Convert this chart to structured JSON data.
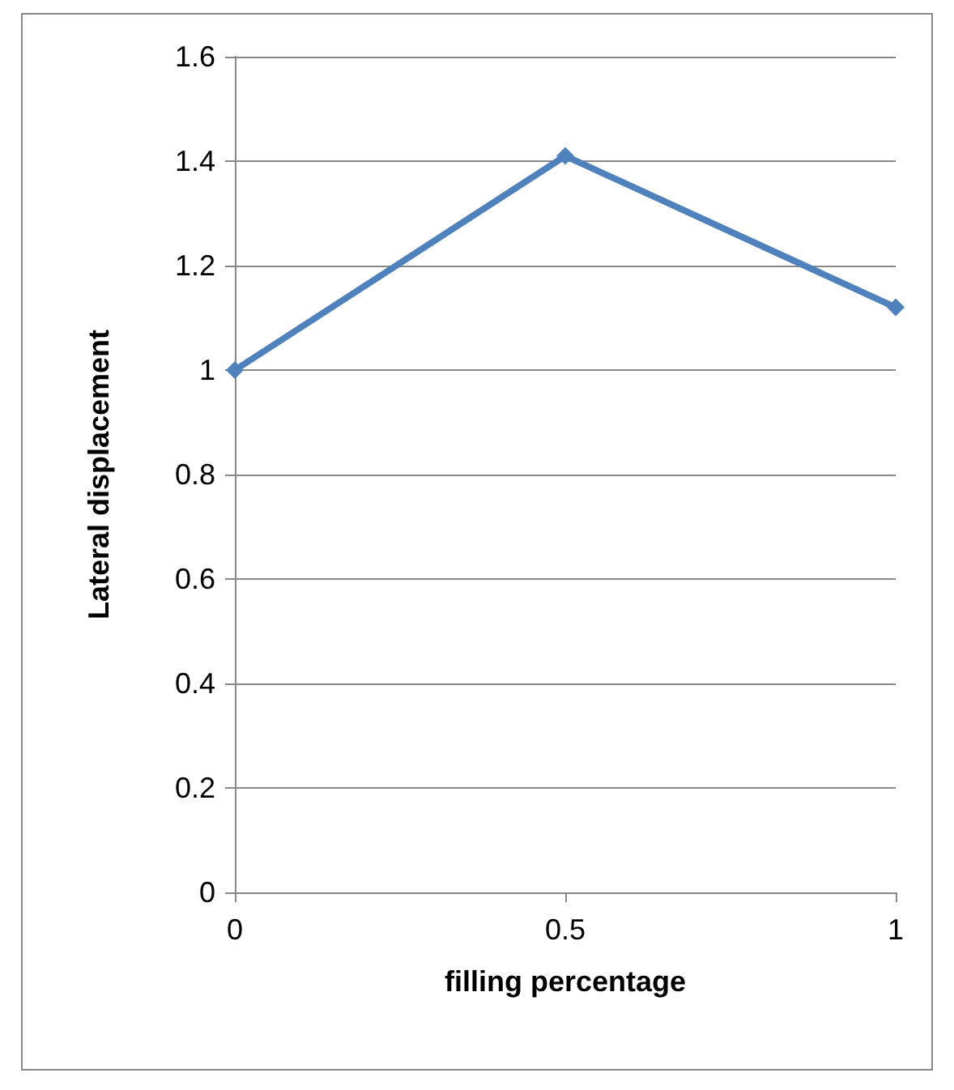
{
  "chart_data": {
    "type": "line",
    "xlabel": "filling percentage",
    "ylabel": "Lateral displacement",
    "categories": [
      "0",
      "0.5",
      "1"
    ],
    "series": [
      {
        "color": "#4f81bd",
        "values": [
          1.0,
          1.41,
          1.12
        ]
      }
    ],
    "ylim": [
      0,
      1.6
    ],
    "yticks": [
      0,
      0.2,
      0.4,
      0.6,
      0.8,
      1,
      1.2,
      1.4,
      1.6
    ],
    "grid": "y",
    "marker": "diamond"
  }
}
